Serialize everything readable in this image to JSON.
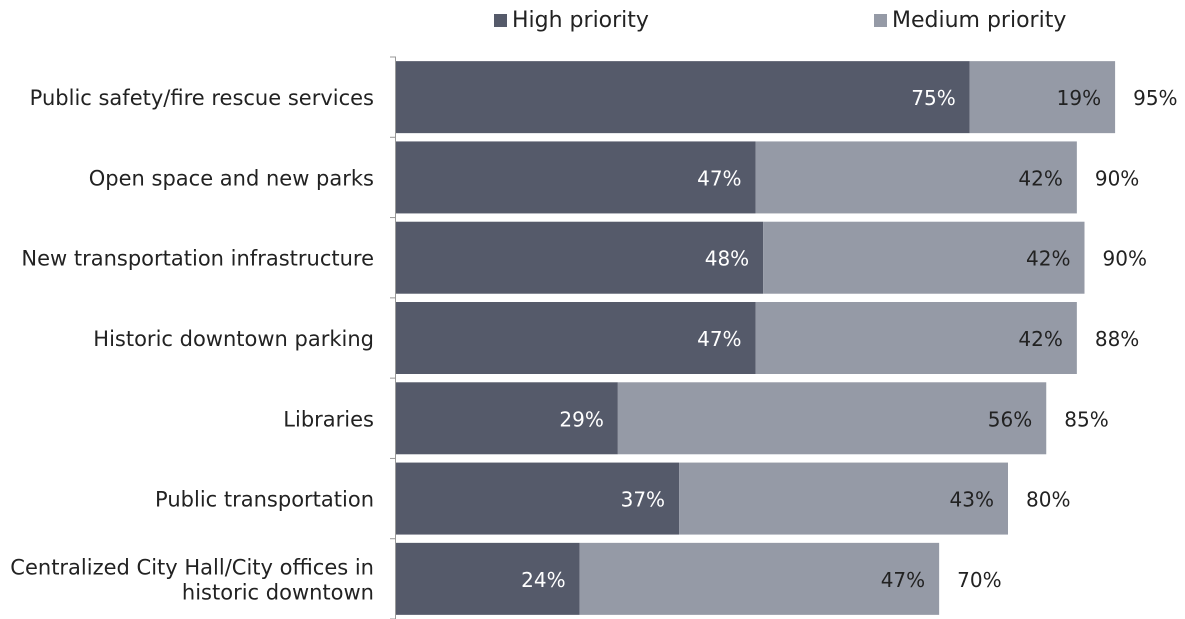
{
  "chart_data": {
    "type": "bar",
    "orientation": "horizontal",
    "stacked": true,
    "legend_position": "top",
    "grid": false,
    "categories": [
      "Public safety/fire rescue services",
      "Open space and new parks",
      "New transportation infrastructure",
      "Historic downtown parking",
      "Libraries",
      "Public transportation",
      "Centralized City Hall/City offices in historic downtown"
    ],
    "category_label_lines": [
      [
        "Public safety/fire rescue services"
      ],
      [
        "Open space and new parks"
      ],
      [
        "New transportation infrastructure"
      ],
      [
        "Historic downtown parking"
      ],
      [
        "Libraries"
      ],
      [
        "Public transportation"
      ],
      [
        "Centralized City Hall/City offices in",
        "historic downtown"
      ]
    ],
    "series": [
      {
        "name": "High priority",
        "color": "#555a6a",
        "values": [
          75,
          47,
          48,
          47,
          29,
          37,
          24
        ],
        "labels": [
          "75%",
          "47%",
          "48%",
          "47%",
          "29%",
          "37%",
          "24%"
        ]
      },
      {
        "name": "Medium priority",
        "color": "#959aa6",
        "values": [
          19,
          42,
          42,
          42,
          56,
          43,
          47
        ],
        "labels": [
          "19%",
          "42%",
          "42%",
          "42%",
          "56%",
          "43%",
          "47%"
        ]
      }
    ],
    "totals": [
      95,
      90,
      90,
      88,
      85,
      80,
      70
    ],
    "total_labels": [
      "95%",
      "90%",
      "90%",
      "88%",
      "85%",
      "80%",
      "70%"
    ],
    "xlim": [
      0,
      100
    ]
  }
}
